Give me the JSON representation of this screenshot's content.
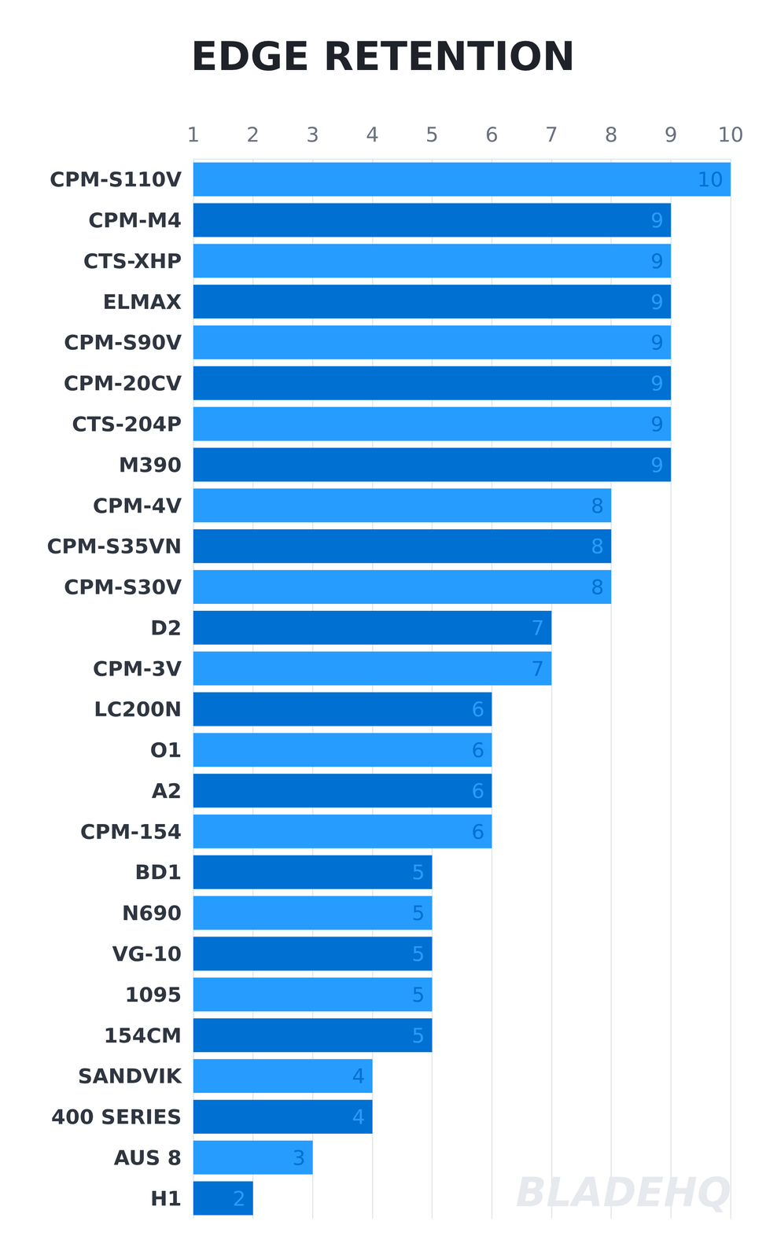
{
  "chart_data": {
    "type": "bar",
    "title": "EDGE RETENTION",
    "orientation": "horizontal",
    "categories": [
      "CPM-S110V",
      "CPM-M4",
      "CTS-XHP",
      "ELMAX",
      "CPM-S90V",
      "CPM-20CV",
      "CTS-204P",
      "M390",
      "CPM-4V",
      "CPM-S35VN",
      "CPM-S30V",
      "D2",
      "CPM-3V",
      "LC200N",
      "O1",
      "A2",
      "CPM-154",
      "BD1",
      "N690",
      "VG-10",
      "1095",
      "154CM",
      "SANDVIK",
      "400 SERIES",
      "AUS 8",
      "H1"
    ],
    "values": [
      10,
      9,
      9,
      9,
      9,
      9,
      9,
      9,
      8,
      8,
      8,
      7,
      7,
      6,
      6,
      6,
      6,
      5,
      5,
      5,
      5,
      5,
      4,
      4,
      3,
      2
    ],
    "colors": [
      "#279cff",
      "#0070d2",
      "#279cff",
      "#0070d2",
      "#279cff",
      "#0070d2",
      "#279cff",
      "#0070d2",
      "#279cff",
      "#0070d2",
      "#279cff",
      "#0070d2",
      "#279cff",
      "#0070d2",
      "#279cff",
      "#0070d2",
      "#279cff",
      "#0070d2",
      "#279cff",
      "#0070d2",
      "#279cff",
      "#0070d2",
      "#279cff",
      "#0070d2",
      "#279cff",
      "#0070d2"
    ],
    "xlim": [
      1,
      10
    ],
    "xticks": [
      1,
      2,
      3,
      4,
      5,
      6,
      7,
      8,
      9,
      10
    ],
    "grid": true,
    "data_labels": true,
    "annotations": [
      "BLADEHQ"
    ]
  }
}
